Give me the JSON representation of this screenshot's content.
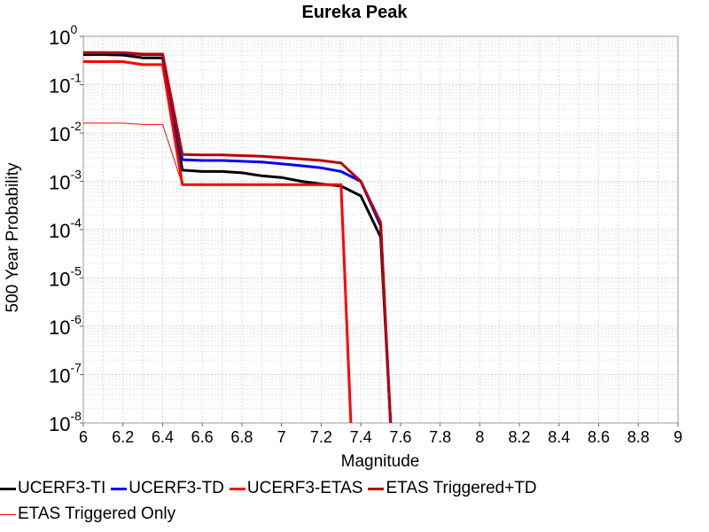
{
  "chart_data": {
    "type": "line",
    "title": "Eureka Peak",
    "xlabel": "Magnitude",
    "ylabel": "500 Year Probability",
    "xlim": [
      6,
      9
    ],
    "ylim": [
      1e-08,
      1
    ],
    "yscale": "log",
    "grid": true,
    "legend_position": "bottom",
    "x_ticks": [
      "6",
      "6.2",
      "6.4",
      "6.6",
      "6.8",
      "7",
      "7.2",
      "7.4",
      "7.6",
      "7.8",
      "8",
      "8.2",
      "8.4",
      "8.6",
      "8.8",
      "9"
    ],
    "y_ticks": [
      {
        "base": "10",
        "exp": "0"
      },
      {
        "base": "10",
        "exp": "-1"
      },
      {
        "base": "10",
        "exp": "-2"
      },
      {
        "base": "10",
        "exp": "-3"
      },
      {
        "base": "10",
        "exp": "-4"
      },
      {
        "base": "10",
        "exp": "-5"
      },
      {
        "base": "10",
        "exp": "-6"
      },
      {
        "base": "10",
        "exp": "-7"
      },
      {
        "base": "10",
        "exp": "-8"
      }
    ],
    "series": [
      {
        "name": "UCERF3-TI",
        "color": "#000000",
        "width": 3,
        "x": [
          6.0,
          6.1,
          6.2,
          6.3,
          6.4,
          6.5,
          6.6,
          6.7,
          6.8,
          6.9,
          7.0,
          7.1,
          7.2,
          7.3,
          7.4,
          7.5,
          7.55
        ],
        "y": [
          0.42,
          0.42,
          0.41,
          0.36,
          0.36,
          0.0017,
          0.0016,
          0.0016,
          0.0015,
          0.0013,
          0.0012,
          0.001,
          0.00088,
          0.0008,
          0.0005,
          7e-05,
          1e-08
        ]
      },
      {
        "name": "UCERF3-TD",
        "color": "#0000ff",
        "width": 3,
        "x": [
          6.0,
          6.1,
          6.2,
          6.3,
          6.4,
          6.5,
          6.6,
          6.7,
          6.8,
          6.9,
          7.0,
          7.1,
          7.2,
          7.3,
          7.4,
          7.5,
          7.55
        ],
        "y": [
          0.46,
          0.46,
          0.45,
          0.42,
          0.42,
          0.0028,
          0.0027,
          0.0027,
          0.0026,
          0.0025,
          0.0023,
          0.0021,
          0.0019,
          0.0016,
          0.001,
          0.00012,
          1e-08
        ]
      },
      {
        "name": "UCERF3-ETAS",
        "color": "#ff0000",
        "width": 3,
        "x": [
          6.0,
          6.1,
          6.2,
          6.3,
          6.4,
          6.5,
          6.6,
          6.7,
          6.8,
          6.9,
          7.0,
          7.1,
          7.2,
          7.3,
          7.35
        ],
        "y": [
          0.3,
          0.3,
          0.3,
          0.26,
          0.26,
          0.00085,
          0.00085,
          0.00085,
          0.00085,
          0.00085,
          0.00085,
          0.00085,
          0.00085,
          0.00085,
          1e-08
        ]
      },
      {
        "name": "ETAS Triggered+TD",
        "color": "#bb0000",
        "width": 3,
        "x": [
          6.0,
          6.1,
          6.2,
          6.3,
          6.4,
          6.5,
          6.6,
          6.7,
          6.8,
          6.9,
          7.0,
          7.1,
          7.2,
          7.3,
          7.4,
          7.5,
          7.55
        ],
        "y": [
          0.46,
          0.46,
          0.46,
          0.43,
          0.43,
          0.0036,
          0.0035,
          0.0035,
          0.0034,
          0.0033,
          0.0031,
          0.0029,
          0.0027,
          0.0024,
          0.001,
          0.00014,
          1e-08
        ]
      },
      {
        "name": "ETAS Triggered Only",
        "color": "#ff0000",
        "width": 1,
        "x": [
          6.0,
          6.1,
          6.2,
          6.3,
          6.4,
          6.5,
          6.6,
          6.7,
          6.8,
          6.9,
          7.0,
          7.1,
          7.2,
          7.3,
          7.35
        ],
        "y": [
          0.016,
          0.016,
          0.016,
          0.015,
          0.015,
          0.00085,
          0.00085,
          0.00085,
          0.00085,
          0.00085,
          0.00085,
          0.00085,
          0.00085,
          0.00082,
          1e-08
        ]
      }
    ]
  }
}
